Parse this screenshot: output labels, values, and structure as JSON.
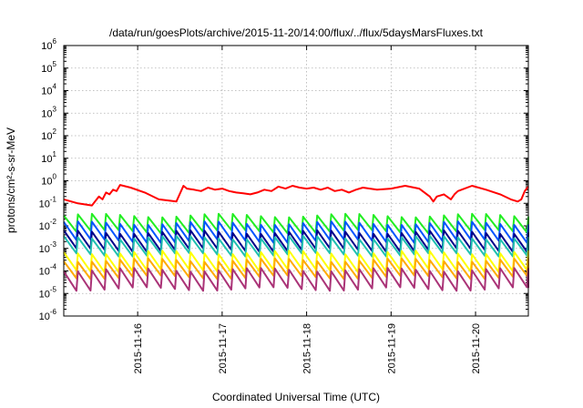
{
  "chart_data": {
    "type": "line",
    "title": "/data/run/goesPlots/archive/2015-11-20/14:00/flux/../flux/5daysMarsFluxes.txt",
    "xlabel": "Coordinated Universal Time (UTC)",
    "ylabel": "protons/cm²-s-sr-MeV",
    "yscale": "log",
    "ylim": [
      1e-06,
      1000000.0
    ],
    "y_ticks": [
      {
        "base": "10",
        "exp": "-6"
      },
      {
        "base": "10",
        "exp": "-5"
      },
      {
        "base": "10",
        "exp": "-4"
      },
      {
        "base": "10",
        "exp": "-3"
      },
      {
        "base": "10",
        "exp": "-2"
      },
      {
        "base": "10",
        "exp": "-1"
      },
      {
        "base": "10",
        "exp": "0"
      },
      {
        "base": "10",
        "exp": "1"
      },
      {
        "base": "10",
        "exp": "2"
      },
      {
        "base": "10",
        "exp": "3"
      },
      {
        "base": "10",
        "exp": "4"
      },
      {
        "base": "10",
        "exp": "5"
      },
      {
        "base": "10",
        "exp": "6"
      }
    ],
    "xlim": [
      "2015-11-15 03:00",
      "2015-11-20 15:00"
    ],
    "x_ticks": [
      "2015-11-16",
      "2015-11-17",
      "2015-11-18",
      "2015-11-19",
      "2015-11-20"
    ],
    "grid": true,
    "legend": "none",
    "series": [
      {
        "color": "#ff0000",
        "x": [
          "2015-11-15 03:00",
          "2015-11-15 07:00",
          "2015-11-15 11:00",
          "2015-11-15 13:00",
          "2015-11-15 14:00",
          "2015-11-15 15:00",
          "2015-11-15 16:00",
          "2015-11-15 17:00",
          "2015-11-15 18:00",
          "2015-11-15 19:00",
          "2015-11-15 22:00",
          "2015-11-16 02:00",
          "2015-11-16 06:00",
          "2015-11-16 11:00",
          "2015-11-16 13:00",
          "2015-11-16 14:00",
          "2015-11-16 16:00",
          "2015-11-16 18:00",
          "2015-11-16 20:00",
          "2015-11-16 22:00",
          "2015-11-17 00:00",
          "2015-11-17 02:00",
          "2015-11-17 04:00",
          "2015-11-17 06:00",
          "2015-11-17 08:00",
          "2015-11-17 10:00",
          "2015-11-17 12:00",
          "2015-11-17 14:00",
          "2015-11-17 16:00",
          "2015-11-17 18:00",
          "2015-11-17 20:00",
          "2015-11-17 22:00",
          "2015-11-18 00:00",
          "2015-11-18 02:00",
          "2015-11-18 04:00",
          "2015-11-18 06:00",
          "2015-11-18 08:00",
          "2015-11-18 10:00",
          "2015-11-18 12:00",
          "2015-11-18 14:00",
          "2015-11-18 16:00",
          "2015-11-18 18:00",
          "2015-11-18 20:00",
          "2015-11-19 00:00",
          "2015-11-19 04:00",
          "2015-11-19 08:00",
          "2015-11-19 11:00",
          "2015-11-19 12:00",
          "2015-11-19 13:00",
          "2015-11-19 15:00",
          "2015-11-19 17:00",
          "2015-11-19 18:00",
          "2015-11-19 19:00",
          "2015-11-19 23:00",
          "2015-11-20 03:00",
          "2015-11-20 07:00",
          "2015-11-20 10:00",
          "2015-11-20 12:00",
          "2015-11-20 13:00",
          "2015-11-20 14:00",
          "2015-11-20 15:00"
        ],
        "y": [
          0.15,
          0.1,
          0.08,
          0.2,
          0.15,
          0.3,
          0.25,
          0.4,
          0.35,
          0.65,
          0.5,
          0.3,
          0.15,
          0.12,
          0.6,
          0.45,
          0.4,
          0.35,
          0.5,
          0.4,
          0.45,
          0.35,
          0.3,
          0.28,
          0.25,
          0.3,
          0.4,
          0.35,
          0.55,
          0.45,
          0.6,
          0.5,
          0.45,
          0.5,
          0.4,
          0.5,
          0.35,
          0.4,
          0.3,
          0.4,
          0.5,
          0.45,
          0.4,
          0.45,
          0.6,
          0.45,
          0.2,
          0.12,
          0.2,
          0.25,
          0.15,
          0.25,
          0.35,
          0.6,
          0.4,
          0.25,
          0.15,
          0.12,
          0.15,
          0.35,
          0.55
        ]
      },
      {
        "color": "#22ee22",
        "base": 0.012,
        "amplitude": 0.38,
        "phase": 0.0
      },
      {
        "color": "#0055ff",
        "base": 0.005,
        "amplitude": 0.42,
        "phase": 0.15
      },
      {
        "color": "#00008b",
        "base": 0.002,
        "amplitude": 0.42,
        "phase": 0.3
      },
      {
        "color": "#20c0b0",
        "base": 0.0012,
        "amplitude": 0.4,
        "phase": 0.45
      },
      {
        "color": "#ffff00",
        "base": 0.00025,
        "amplitude": 0.42,
        "phase": 0.6
      },
      {
        "color": "#ffaa00",
        "base": 0.00012,
        "amplitude": 0.4,
        "phase": 0.75
      },
      {
        "color": "#aa3377",
        "base": 4e-05,
        "amplitude": 0.45,
        "phase": 0.9
      }
    ]
  }
}
